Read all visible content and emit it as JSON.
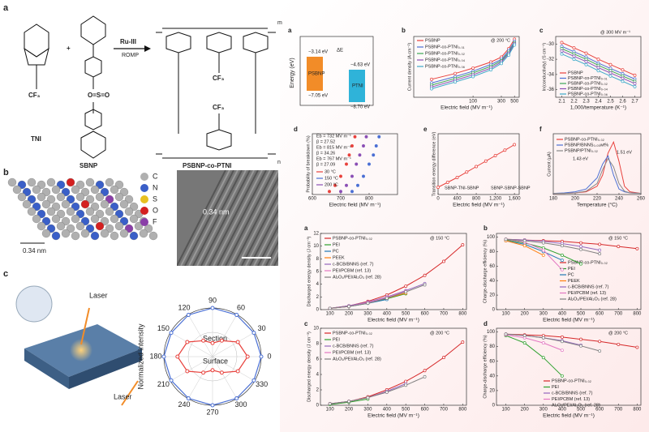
{
  "figure": {
    "panel_labels": [
      "a",
      "b",
      "c"
    ],
    "scheme": {
      "monomer1": "TNI",
      "monomer2": "SBNP",
      "polymer": "PSBNP-co-PTNI",
      "catalyst": "Ru-III",
      "reaction": "ROMP",
      "plus": "+",
      "cf3": [
        "CF₃",
        "CF₃",
        "CF₃"
      ],
      "n": "n",
      "m": "m"
    },
    "energy_diagram": {
      "label": "a",
      "ylabel": "Energy (eV)",
      "left": "PSBNP",
      "right": "PTNI",
      "levels": [
        "−3.14 eV",
        "−4.63 eV",
        "−7.05 eV",
        "−8.70 eV"
      ],
      "delta": "ΔE"
    },
    "structure": {
      "atoms": [
        "C",
        "N",
        "S",
        "O",
        "F"
      ],
      "spacing": "0.34 nm",
      "tem_spacing": "0.34 nm"
    },
    "polarization": {
      "laser": [
        "Laser",
        "Laser"
      ]
    }
  },
  "chart_data": [
    {
      "type": "line",
      "label": "b",
      "annotation": [
        "@ 200 °C"
      ],
      "xlabel": "Electric field (MV m⁻¹)",
      "ylabel": "Current density (A cm⁻²)",
      "xlog": true,
      "ylog": true,
      "xlim": [
        10,
        600
      ],
      "ylim": [
        1e-09,
        0.0001
      ],
      "xticks": [
        100,
        300,
        500
      ],
      "x": [
        20,
        50,
        100,
        200,
        300,
        400,
        500
      ],
      "series": [
        {
          "name": "PSBNP",
          "color": "#e8413c",
          "values": [
            3e-08,
            9e-08,
            2.5e-07,
            8e-07,
            2e-06,
            1e-05,
            6e-05
          ]
        },
        {
          "name": "PSBNP-co-PTNI₀.₀₁",
          "color": "#4a6fd4",
          "values": [
            1.5e-08,
            5e-08,
            1.4e-07,
            5e-07,
            1.3e-06,
            7e-06,
            4e-05
          ]
        },
        {
          "name": "PSBNP-co-PTNI₀.₀₂",
          "color": "#3aa655",
          "values": [
            1e-08,
            3.5e-08,
            1e-07,
            3.5e-07,
            1e-06,
            5e-06,
            3e-05
          ]
        },
        {
          "name": "PSBNP-co-PTNI₀.₀₄",
          "color": "#8a4fb5",
          "values": [
            7e-09,
            2.5e-08,
            7e-08,
            2.5e-07,
            8e-07,
            4e-06,
            2.5e-05
          ]
        },
        {
          "name": "PSBNP-co-PTNI₀.₀₆",
          "color": "#3aa8c8",
          "values": [
            5e-09,
            1.8e-08,
            5e-08,
            1.8e-07,
            6e-07,
            3e-06,
            2e-05
          ]
        }
      ]
    },
    {
      "type": "line",
      "label": "c",
      "annotation": [
        "@ 300 MV m⁻¹"
      ],
      "xlabel": "1,000/temperature (K⁻¹)",
      "ylabel": "ln(conductivity) (S cm⁻¹)",
      "xlim": [
        2.05,
        2.75
      ],
      "ylim": [
        -37,
        -29
      ],
      "xticks": [
        2.1,
        2.2,
        2.3,
        2.4,
        2.5,
        2.6,
        2.7
      ],
      "yticks": [
        -30,
        -32,
        -34,
        -36
      ],
      "x": [
        2.1,
        2.2,
        2.3,
        2.4,
        2.5,
        2.6,
        2.7
      ],
      "series": [
        {
          "name": "PSBNP",
          "color": "#e8413c",
          "values": [
            -29.8,
            -30.5,
            -31.2,
            -32,
            -32.7,
            -33.4,
            -34.1
          ]
        },
        {
          "name": "PSBNP-co-PTNI₀.₀₁",
          "color": "#4a6fd4",
          "values": [
            -30.3,
            -31,
            -31.7,
            -32.5,
            -33.2,
            -33.9,
            -34.6
          ]
        },
        {
          "name": "PSBNP-co-PTNI₀.₀₂",
          "color": "#3aa655",
          "values": [
            -30.6,
            -31.3,
            -32,
            -32.8,
            -33.5,
            -34.2,
            -34.9
          ]
        },
        {
          "name": "PSBNP-co-PTNI₀.₀₄",
          "color": "#8a4fb5",
          "values": [
            -30.9,
            -31.6,
            -32.3,
            -33.1,
            -33.8,
            -34.5,
            -35.2
          ]
        },
        {
          "name": "PSBNP-co-PTNI₀.₀₆",
          "color": "#3aa8c8",
          "values": [
            -31.3,
            -32,
            -32.7,
            -33.5,
            -34.2,
            -34.9,
            -35.6
          ]
        }
      ]
    },
    {
      "type": "scatter",
      "label": "d",
      "annotation": [
        "Eb = 732 MV m⁻¹",
        "β = 27.52",
        "Eb = 815 MV m⁻¹",
        "β = 34.26",
        "Eb = 767 MV m⁻¹",
        "β = 27.09"
      ],
      "xlabel": "Electric field (MV m⁻¹)",
      "ylabel": "Probability of breakdown (%)",
      "xlim": [
        600,
        900
      ],
      "ylim": [
        0,
        100
      ],
      "xticks": [
        600,
        700,
        800
      ],
      "series": [
        {
          "name": "30 °C",
          "color": "#e8413c",
          "x": [
            660,
            680,
            700,
            720,
            730,
            740,
            750
          ],
          "values": [
            5,
            15,
            30,
            50,
            65,
            80,
            95
          ]
        },
        {
          "name": "150 °C",
          "color": "#4a6fd4",
          "x": [
            740,
            760,
            780,
            800,
            815,
            825,
            835
          ],
          "values": [
            5,
            15,
            30,
            50,
            65,
            80,
            95
          ]
        },
        {
          "name": "200 °C",
          "color": "#8a4fb5",
          "x": [
            700,
            720,
            740,
            755,
            767,
            780,
            790
          ],
          "values": [
            5,
            15,
            30,
            50,
            65,
            80,
            95
          ]
        }
      ]
    },
    {
      "type": "line",
      "label": "e",
      "annotation": [
        "SBNP-TNI-SBNP",
        "SBNP-SBNP-SBNP"
      ],
      "xlabel": "Electric field (MV m⁻¹)",
      "ylabel": "Transition energy difference (eV)",
      "xlim": [
        0,
        1700
      ],
      "ylim": [
        0,
        1
      ],
      "xticks": [
        0,
        400,
        800,
        {
          "value": 1200,
          "label": "1,200"
        },
        {
          "value": 1600,
          "label": "1,600"
        }
      ],
      "x": [
        0,
        200,
        400,
        600,
        800,
        1000,
        1200,
        1400,
        1600
      ],
      "series": [
        {
          "color": "#e8413c",
          "values": [
            0.12,
            0.2,
            0.28,
            0.37,
            0.46,
            0.55,
            0.64,
            0.73,
            0.82
          ]
        }
      ]
    },
    {
      "type": "line",
      "label": "f",
      "annotation": [
        "1.43 eV",
        "1.51 eV"
      ],
      "xlabel": "Temperature (°C)",
      "ylabel": "Current (μA)",
      "xlim": [
        180,
        260
      ],
      "ylim": [
        0,
        1.1
      ],
      "xticks": [
        180,
        200,
        220,
        240,
        260
      ],
      "x": [
        180,
        190,
        200,
        210,
        220,
        225,
        230,
        235,
        240,
        245,
        250,
        260
      ],
      "nomarkers": true,
      "series": [
        {
          "name": "PSBNP-co-PTNI₀.₀₂",
          "color": "#e8413c",
          "values": [
            0.02,
            0.02,
            0.03,
            0.05,
            0.15,
            0.35,
            0.75,
            0.95,
            0.6,
            0.15,
            0.05,
            0.02
          ]
        },
        {
          "name": "PSBNP/BNNS₀.₀₅wt%",
          "color": "#4a6fd4",
          "values": [
            0.02,
            0.03,
            0.05,
            0.1,
            0.3,
            0.55,
            0.7,
            0.35,
            0.1,
            0.05,
            0.03,
            0.02
          ]
        },
        {
          "name": "PSBNP/PTNI₀.₀₂",
          "color": "#888888",
          "values": [
            0.02,
            0.02,
            0.03,
            0.06,
            0.2,
            0.45,
            0.65,
            0.5,
            0.2,
            0.06,
            0.03,
            0.02
          ]
        }
      ]
    },
    {
      "type": "polar",
      "ylabel": "Normalized intensity",
      "rlim": [
        0,
        1
      ],
      "thetaticks": [
        0,
        30,
        60,
        90,
        120,
        150,
        180,
        210,
        240,
        270,
        300,
        330
      ],
      "theta": [
        0,
        30,
        60,
        90,
        120,
        150,
        180,
        210,
        240,
        270,
        300,
        330
      ],
      "series": [
        {
          "name": "Section",
          "color": "#4a6fd4",
          "values": [
            1,
            0.98,
            0.99,
            1,
            0.99,
            0.98,
            1,
            0.98,
            0.99,
            1,
            0.99,
            0.98
          ]
        },
        {
          "name": "Surface",
          "color": "#e8413c",
          "values": [
            0.72,
            0.6,
            0.38,
            0.28,
            0.38,
            0.6,
            0.72,
            0.6,
            0.38,
            0.28,
            0.38,
            0.6
          ]
        }
      ]
    },
    {
      "type": "line",
      "label": "a",
      "annotation": [
        "@ 150 °C"
      ],
      "xlabel": "Electric field (MV m⁻¹)",
      "ylabel": "Discharged energy density (J cm⁻³)",
      "xlim": [
        50,
        820
      ],
      "ylim": [
        0,
        12
      ],
      "xticks": [
        100,
        200,
        300,
        400,
        500,
        600,
        700,
        800
      ],
      "yticks": [
        0,
        2,
        4,
        6,
        8,
        10,
        12
      ],
      "x": [
        100,
        200,
        300,
        400,
        500,
        600,
        700,
        800
      ],
      "series": [
        {
          "name": "PSBNP-co-PTNI₀.₀₂",
          "color": "#d62728",
          "values": [
            0.2,
            0.6,
            1.3,
            2.3,
            3.7,
            5.4,
            7.6,
            10.2
          ]
        },
        {
          "name": "PEI",
          "color": "#2ca02c",
          "values": [
            0.2,
            0.5,
            1,
            1.7,
            2.5,
            null,
            null,
            null
          ]
        },
        {
          "name": "PC",
          "color": "#1f77b4",
          "values": [
            0.2,
            0.5,
            1,
            1.6,
            null,
            null,
            null,
            null
          ]
        },
        {
          "name": "PEEK",
          "color": "#ff7f0e",
          "values": [
            0.2,
            0.5,
            1.1,
            1.8,
            2.6,
            null,
            null,
            null
          ]
        },
        {
          "name": "c-BCB/BNNS (ref. 7)",
          "color": "#9467bd",
          "values": [
            0.2,
            0.6,
            1.2,
            2,
            3,
            4.1,
            null,
            null
          ]
        },
        {
          "name": "PEI/PCBM (ref. 13)",
          "color": "#e377c2",
          "values": [
            0.2,
            0.5,
            1.1,
            1.9,
            2.9,
            null,
            null,
            null
          ]
        },
        {
          "name": "Al₂O₃/PEI/Al₂O₃ (ref. 28)",
          "color": "#7f7f7f",
          "values": [
            0.2,
            0.5,
            1,
            1.8,
            2.8,
            3.9,
            null,
            null
          ]
        }
      ]
    },
    {
      "type": "line",
      "label": "b",
      "annotation": [
        "@ 150 °C"
      ],
      "xlabel": "Electric field (MV m⁻¹)",
      "ylabel": "Charge-discharge efficiency (%)",
      "xlim": [
        50,
        820
      ],
      "ylim": [
        0,
        105
      ],
      "xticks": [
        100,
        200,
        300,
        400,
        500,
        600,
        700,
        800
      ],
      "yticks": [
        0,
        20,
        40,
        60,
        80,
        100
      ],
      "x": [
        100,
        200,
        300,
        400,
        500,
        600,
        700,
        800
      ],
      "series": [
        {
          "name": "PSBNP-co-PTNI₀.₀₂",
          "color": "#d62728",
          "values": [
            97,
            96,
            95,
            94,
            92,
            90,
            87,
            84
          ]
        },
        {
          "name": "PEI",
          "color": "#2ca02c",
          "values": [
            96,
            92,
            85,
            75,
            63,
            null,
            null,
            null
          ]
        },
        {
          "name": "PC",
          "color": "#1f77b4",
          "values": [
            95,
            90,
            80,
            68,
            null,
            null,
            null,
            null
          ]
        },
        {
          "name": "PEEK",
          "color": "#ff7f0e",
          "values": [
            95,
            88,
            75,
            null,
            null,
            null,
            null,
            null
          ]
        },
        {
          "name": "c-BCB/BNNS (ref. 7)",
          "color": "#9467bd",
          "values": [
            97,
            96,
            94,
            91,
            87,
            82,
            null,
            null
          ]
        },
        {
          "name": "PEI/PCBM (ref. 13)",
          "color": "#e377c2",
          "values": [
            97,
            93,
            82,
            55,
            null,
            null,
            null,
            null
          ]
        },
        {
          "name": "Al₂O₃/PEI/Al₂O₃ (ref. 28)",
          "color": "#7f7f7f",
          "values": [
            97,
            95,
            92,
            88,
            83,
            77,
            null,
            null
          ]
        }
      ]
    },
    {
      "type": "line",
      "label": "c",
      "annotation": [
        "@ 200 °C"
      ],
      "xlabel": "Electric field (MV m⁻¹)",
      "ylabel": "Discharged energy density (J cm⁻³)",
      "xlim": [
        50,
        820
      ],
      "ylim": [
        0,
        10
      ],
      "xticks": [
        100,
        200,
        300,
        400,
        500,
        600,
        700,
        800
      ],
      "yticks": [
        0,
        2,
        4,
        6,
        8,
        10
      ],
      "x": [
        100,
        200,
        300,
        400,
        500,
        600,
        700,
        800
      ],
      "series": [
        {
          "name": "PSBNP-co-PTNI₀.₀₂",
          "color": "#d62728",
          "values": [
            0.2,
            0.5,
            1.1,
            2,
            3.1,
            4.5,
            6.2,
            8.2
          ]
        },
        {
          "name": "PEI",
          "color": "#2ca02c",
          "values": [
            0.1,
            0.4,
            0.8,
            null,
            null,
            null,
            null,
            null
          ]
        },
        {
          "name": "c-BCB/BNNS (ref. 7)",
          "color": "#9467bd",
          "values": [
            0.2,
            0.5,
            1,
            1.8,
            2.8,
            null,
            null,
            null
          ]
        },
        {
          "name": "PEI/PCBM (ref. 13)",
          "color": "#e377c2",
          "values": [
            0.2,
            0.5,
            1,
            1.7,
            null,
            null,
            null,
            null
          ]
        },
        {
          "name": "Al₂O₃/PEI/Al₂O₃ (ref. 28)",
          "color": "#7f7f7f",
          "values": [
            0.2,
            0.5,
            1,
            1.7,
            2.6,
            3.7,
            null,
            null
          ]
        }
      ]
    },
    {
      "type": "line",
      "label": "d",
      "annotation": [
        "@ 200 °C"
      ],
      "xlabel": "Electric field (MV m⁻¹)",
      "ylabel": "Charge-discharge efficiency (%)",
      "xlim": [
        50,
        820
      ],
      "ylim": [
        0,
        105
      ],
      "xticks": [
        100,
        200,
        300,
        400,
        500,
        600,
        700,
        800
      ],
      "yticks": [
        0,
        20,
        40,
        60,
        80,
        100
      ],
      "x": [
        100,
        200,
        300,
        400,
        500,
        600,
        700,
        800
      ],
      "series": [
        {
          "name": "PSBNP-co-PTNI₀.₀₂",
          "color": "#d62728",
          "values": [
            97,
            96,
            95,
            93,
            90,
            87,
            83,
            79
          ]
        },
        {
          "name": "PEI",
          "color": "#2ca02c",
          "values": [
            95,
            85,
            65,
            40,
            null,
            null,
            null,
            null
          ]
        },
        {
          "name": "c-BCB/BNNS (ref. 7)",
          "color": "#9467bd",
          "values": [
            97,
            95,
            92,
            88,
            82,
            null,
            null,
            null
          ]
        },
        {
          "name": "PEI/PCBM (ref. 13)",
          "color": "#e377c2",
          "values": [
            96,
            92,
            85,
            75,
            null,
            null,
            null,
            null
          ]
        },
        {
          "name": "Al₂O₃/PEI/Al₂O₃ (ref. 28)",
          "color": "#7f7f7f",
          "values": [
            97,
            95,
            92,
            87,
            81,
            74,
            null,
            null
          ]
        }
      ]
    }
  ]
}
